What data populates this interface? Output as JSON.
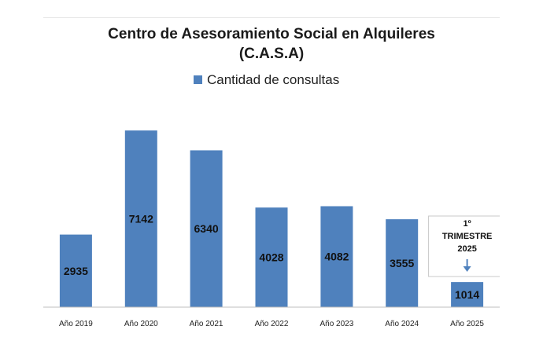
{
  "chart_data": {
    "type": "bar",
    "title": "Centro de Asesoramiento Social en Alquileres",
    "subtitle": "(C.A.S.A)",
    "xlabel": "",
    "ylabel": "",
    "categories": [
      "Año 2019",
      "Año 2020",
      "Año 2021",
      "Año 2022",
      "Año 2023",
      "Año 2024",
      "Año 2025"
    ],
    "series": [
      {
        "name": "Cantidad de consultas",
        "values": [
          2935,
          7142,
          6340,
          4028,
          4082,
          3555,
          1014
        ],
        "data_labels": [
          "2935",
          "7142",
          "6340",
          "4028",
          "4082",
          "3555",
          "1014"
        ]
      }
    ],
    "ylim": [
      0,
      7400
    ],
    "grid": false,
    "legend": "top",
    "colors": {
      "bar": "#4f81bd",
      "axis": "#bfbfbf"
    },
    "annotation": {
      "category": "Año 2025",
      "lines": [
        "1º",
        "TRIMESTRE",
        "2025"
      ],
      "arrow": "down-arrow-icon"
    }
  }
}
